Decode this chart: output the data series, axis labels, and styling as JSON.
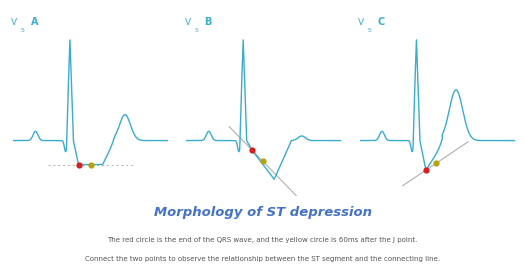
{
  "title": "Morphology of ST depression",
  "subtitle1": "The red circle is the end of the QRS wave, and the yellow circle is 60ms after the J point.",
  "subtitle2": "Connect the two points to observe the relationship between the ST segment and the connecting line.",
  "ecg_color": "#3aaccc",
  "red_dot": "#d42020",
  "yellow_dot": "#b8a010",
  "panel_bg": "#ffffff",
  "border_color": "#cccccc",
  "label_v5_color": "#3aaccc",
  "label_letter_color": "#3aaccc",
  "title_color": "#4472c4",
  "sub_color": "#555555",
  "panels": [
    "A",
    "B",
    "C"
  ],
  "panel_label": "V",
  "panel_label_sub": "5"
}
